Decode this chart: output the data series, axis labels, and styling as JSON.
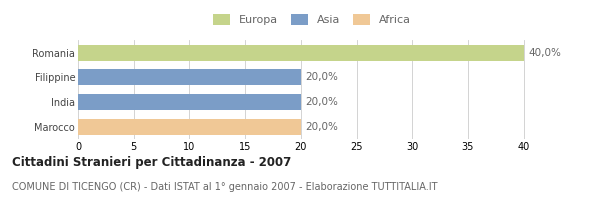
{
  "categories": [
    "Romania",
    "Filippine",
    "India",
    "Marocco"
  ],
  "values": [
    40.0,
    20.0,
    20.0,
    20.0
  ],
  "bar_colors": [
    "#c5d48b",
    "#7b9dc7",
    "#7b9dc7",
    "#f0c896"
  ],
  "legend_labels": [
    "Europa",
    "Asia",
    "Africa"
  ],
  "legend_colors": [
    "#c5d48b",
    "#7b9dc7",
    "#f0c896"
  ],
  "bar_labels": [
    "40,0%",
    "20,0%",
    "20,0%",
    "20,0%"
  ],
  "xlim": [
    0,
    42
  ],
  "xticks": [
    0,
    5,
    10,
    15,
    20,
    25,
    30,
    35,
    40
  ],
  "title": "Cittadini Stranieri per Cittadinanza - 2007",
  "subtitle": "COMUNE DI TICENGO (CR) - Dati ISTAT al 1° gennaio 2007 - Elaborazione TUTTITALIA.IT",
  "title_fontsize": 8.5,
  "subtitle_fontsize": 7.0,
  "label_fontsize": 7.5,
  "tick_fontsize": 7.0,
  "legend_fontsize": 8.0,
  "bg_color": "#ffffff",
  "grid_color": "#cccccc"
}
